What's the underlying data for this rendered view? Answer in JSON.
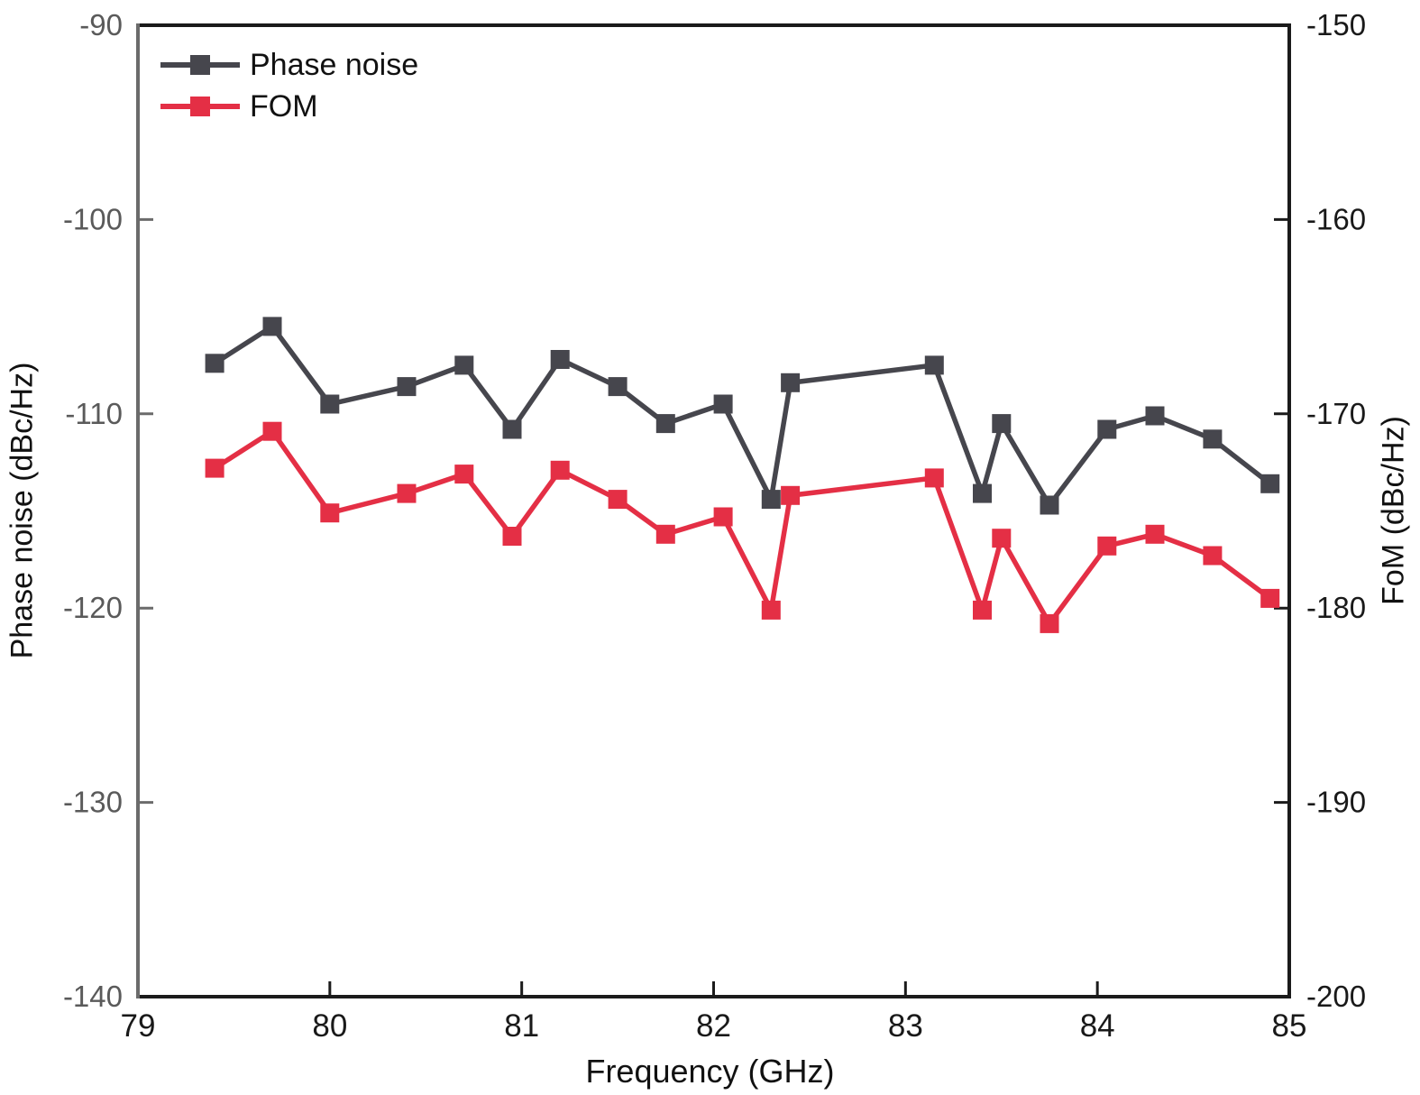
{
  "figure": {
    "background": "#ffffff",
    "frame_color": "#1b1b1b",
    "left_axis_color": "#6b6b6b",
    "legend": {
      "items": [
        {
          "label": "Phase noise",
          "color": "#46464d"
        },
        {
          "label": "FOM",
          "color": "#e42f45"
        }
      ]
    },
    "axes": {
      "x": {
        "title": "Frequency (GHz)",
        "ticks": [
          79,
          80,
          81,
          82,
          83,
          84,
          85
        ],
        "tick_label_color": "#191919"
      },
      "y_left": {
        "title": "Phase noise (dBc/Hz)",
        "ticks": [
          -90,
          -100,
          -110,
          -120,
          -130,
          -140
        ],
        "tick_label_color": "#5a5a5a"
      },
      "y_right": {
        "title": "FoM (dBc/Hz)",
        "ticks": [
          -150,
          -160,
          -170,
          -180,
          -190,
          -200
        ],
        "tick_label_color": "#191919"
      }
    }
  },
  "chart_data": {
    "type": "line",
    "title": "",
    "xlabel": "Frequency (GHz)",
    "ylabel_left": "Phase noise (dBc/Hz)",
    "ylabel_right": "FoM (dBc/Hz)",
    "xlim": [
      79,
      85
    ],
    "ylim_left": [
      -140,
      -90
    ],
    "ylim_right": [
      -200,
      -150
    ],
    "grid": false,
    "legend_position": "top-left",
    "x": [
      79.4,
      79.7,
      80.0,
      80.4,
      80.7,
      80.95,
      81.2,
      81.5,
      81.75,
      82.05,
      82.3,
      82.4,
      83.15,
      83.4,
      83.5,
      83.75,
      84.05,
      84.3,
      84.6,
      84.9
    ],
    "series": [
      {
        "name": "Phase noise",
        "axis": "left",
        "color": "#46464d",
        "marker": "square",
        "values": [
          -107.4,
          -105.5,
          -109.5,
          -108.6,
          -107.5,
          -110.8,
          -107.2,
          -108.6,
          -110.5,
          -109.5,
          -114.4,
          -108.4,
          -107.5,
          -114.1,
          -110.5,
          -114.7,
          -110.8,
          -110.1,
          -111.3,
          -113.6
        ]
      },
      {
        "name": "FOM",
        "axis": "right",
        "color": "#e42f45",
        "marker": "square",
        "values": [
          -172.8,
          -170.9,
          -175.1,
          -174.1,
          -173.1,
          -176.3,
          -172.9,
          -174.4,
          -176.2,
          -175.3,
          -180.1,
          -174.2,
          -173.3,
          -180.1,
          -176.4,
          -180.8,
          -176.8,
          -176.2,
          -177.3,
          -179.5
        ]
      }
    ]
  }
}
